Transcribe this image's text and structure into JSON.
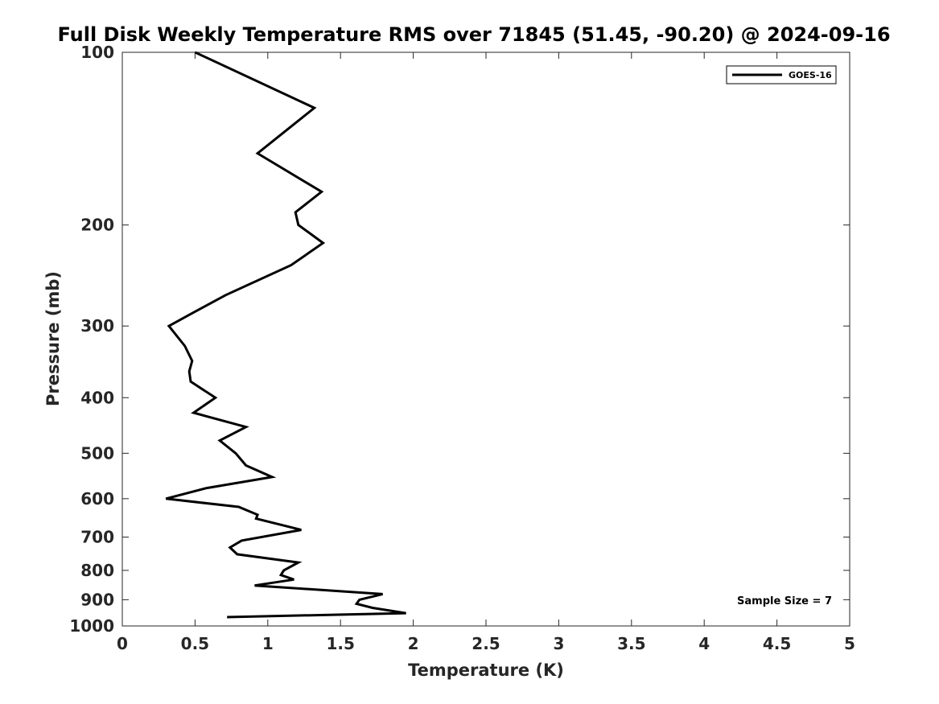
{
  "chart_data": {
    "type": "line",
    "title": "Full Disk Weekly Temperature RMS over 71845 (51.45, -90.20) @ 2024-09-16",
    "xlabel": "Temperature (K)",
    "ylabel": "Pressure (mb)",
    "xlim": [
      0,
      5
    ],
    "ylim": [
      100,
      1000
    ],
    "yscale": "log",
    "y_reversed": true,
    "x_ticks": [
      0,
      0.5,
      1,
      1.5,
      2,
      2.5,
      3,
      3.5,
      4,
      4.5,
      5
    ],
    "x_tick_labels": [
      "0",
      "0.5",
      "1",
      "1.5",
      "2",
      "2.5",
      "3",
      "3.5",
      "4",
      "4.5",
      "5"
    ],
    "y_ticks": [
      100,
      200,
      300,
      400,
      500,
      600,
      700,
      800,
      900,
      1000
    ],
    "y_tick_labels": [
      "100",
      "200",
      "300",
      "400",
      "500",
      "600",
      "700",
      "800",
      "900",
      "1000"
    ],
    "grid": false,
    "legend": {
      "position": "top-right",
      "entries": [
        "GOES-16"
      ]
    },
    "annotation": "Sample Size = 7",
    "series": [
      {
        "name": "GOES-16",
        "color": "#000000",
        "points": [
          [
            0.5,
            100
          ],
          [
            1.32,
            125
          ],
          [
            0.93,
            150
          ],
          [
            1.37,
            175
          ],
          [
            1.19,
            190
          ],
          [
            1.21,
            200
          ],
          [
            1.38,
            215
          ],
          [
            1.16,
            235
          ],
          [
            0.71,
            265
          ],
          [
            0.48,
            285
          ],
          [
            0.32,
            300
          ],
          [
            0.43,
            325
          ],
          [
            0.48,
            345
          ],
          [
            0.46,
            360
          ],
          [
            0.47,
            375
          ],
          [
            0.64,
            400
          ],
          [
            0.49,
            425
          ],
          [
            0.85,
            450
          ],
          [
            0.67,
            475
          ],
          [
            0.78,
            500
          ],
          [
            0.85,
            525
          ],
          [
            1.03,
            550
          ],
          [
            0.58,
            575
          ],
          [
            0.3,
            600
          ],
          [
            0.8,
            620
          ],
          [
            0.93,
            640
          ],
          [
            0.92,
            650
          ],
          [
            1.23,
            680
          ],
          [
            0.82,
            710
          ],
          [
            0.74,
            730
          ],
          [
            0.79,
            750
          ],
          [
            1.21,
            775
          ],
          [
            1.11,
            800
          ],
          [
            1.09,
            815
          ],
          [
            1.18,
            830
          ],
          [
            0.91,
            850
          ],
          [
            1.79,
            880
          ],
          [
            1.63,
            900
          ],
          [
            1.61,
            915
          ],
          [
            1.72,
            930
          ],
          [
            1.95,
            950
          ],
          [
            0.72,
            965
          ]
        ]
      }
    ]
  }
}
